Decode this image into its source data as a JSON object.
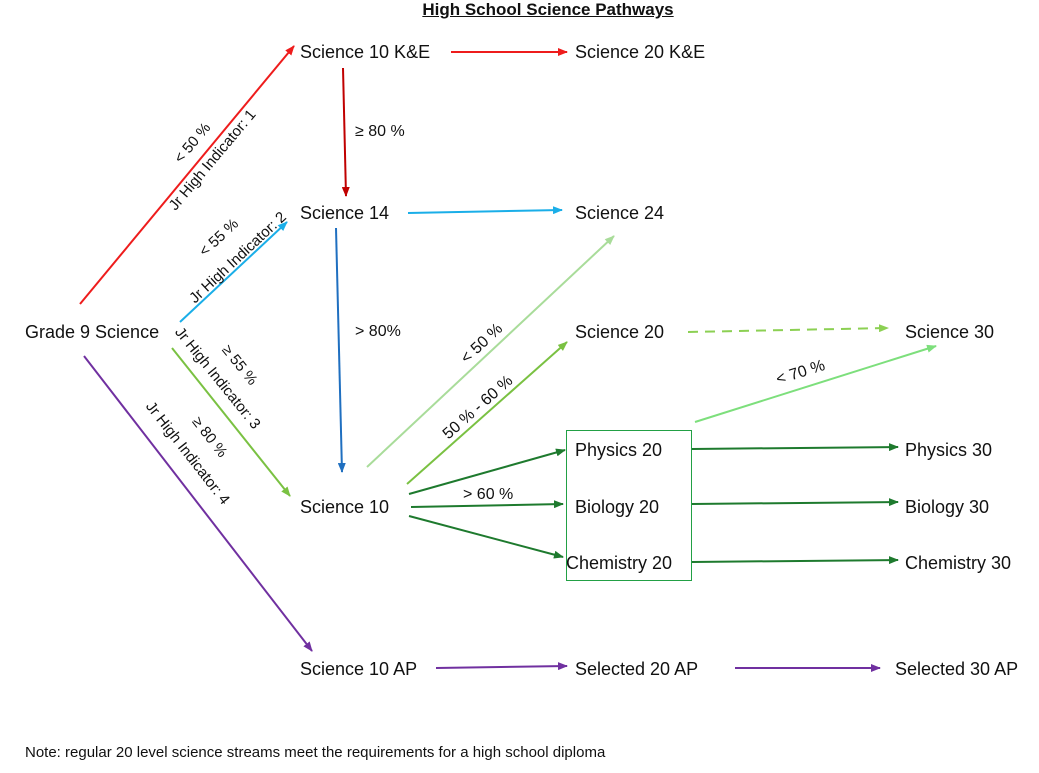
{
  "title": "High School Science Pathways",
  "nodes": {
    "sci10ke": "Science 10 K&E",
    "sci20ke": "Science 20 K&E",
    "sci14": "Science 14",
    "sci24": "Science 24",
    "grade9": "Grade 9 Science",
    "sci20": "Science 20",
    "sci30": "Science 30",
    "phys20": "Physics 20",
    "bio20": "Biology 20",
    "chem20": "Chemistry 20",
    "phys30": "Physics 30",
    "bio30": "Biology 30",
    "chem30": "Chemistry 30",
    "sci10": "Science 10",
    "sci10ap": "Science 10 AP",
    "sel20ap": "Selected 20 AP",
    "sel30ap": "Selected 30 AP"
  },
  "edge_labels": {
    "red_pct": "< 50 %",
    "red_ind": "Jr High Indicator: 1",
    "cyan_pct": "< 55 %",
    "cyan_ind": "Jr High Indicator: 2",
    "green_pct": "≥ 55 %",
    "green_ind": "Jr High Indicator: 3",
    "purple_pct": "≥ 80 %",
    "purple_ind": "Jr High Indicator: 4",
    "ke_to_14": "≥ 80 %",
    "s14_to_10": "> 80%",
    "to24": "< 50 %",
    "to20": "50 % - 60 %",
    "to_sci30": "< 70 %",
    "to_specialized": "> 60 %"
  },
  "note": "Note: regular 20 level science streams meet the requirements for a high school diploma",
  "colors": {
    "red": "#ee1c1c",
    "darkred": "#c00000",
    "cyan": "#1aaee8",
    "blue": "#1f6fc0",
    "lightgreen": "#a9dc9a",
    "green": "#7ac142",
    "dashgreen": "#8cd053",
    "mint": "#7ddf7c",
    "darkgreen": "#1e7a2e",
    "purple": "#7030a0"
  }
}
